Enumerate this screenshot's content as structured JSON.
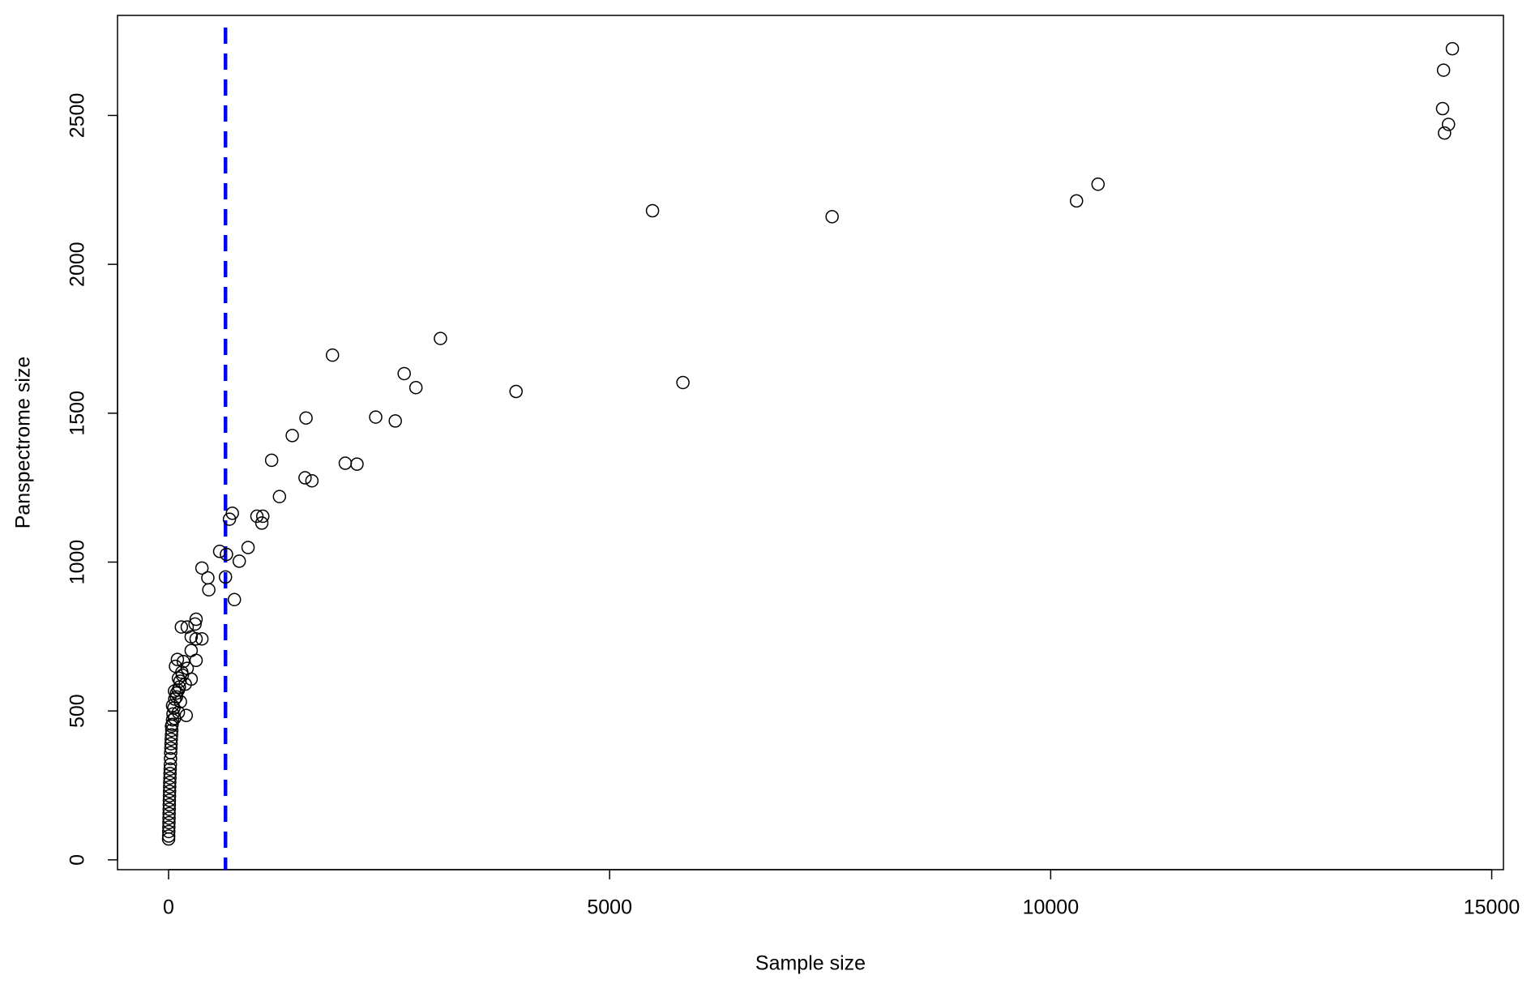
{
  "chart_data": {
    "type": "scatter",
    "xlabel": "Sample size",
    "ylabel": "Panspectrome size",
    "xlim": [
      -579,
      15133
    ],
    "ylim": [
      -33,
      2836
    ],
    "xticks": [
      0,
      5000,
      10000,
      15000
    ],
    "yticks": [
      0,
      500,
      1000,
      1500,
      2000,
      2500
    ],
    "color": "#000000",
    "vline": {
      "x": 645,
      "color": "#0000ff"
    },
    "x": [
      14554,
      14454,
      14443,
      14510,
      14465,
      10537,
      10293,
      5486,
      7522,
      3082,
      1858,
      5831,
      2671,
      2804,
      3939,
      1558,
      2348,
      2570,
      1402,
      1168,
      2003,
      2136,
      1547,
      1625,
      1257,
      723,
      690,
      1001,
      1068,
      1057,
      901,
      579,
      656,
      801,
      378,
      445,
      645,
      456,
      746,
      312,
      300,
      145,
      211,
      256,
      312,
      378,
      312,
      256,
      100,
      78,
      167,
      211,
      156,
      111,
      256,
      189,
      122,
      67,
      89,
      134,
      45,
      200,
      111,
      67,
      33,
      0,
      1,
      2,
      3,
      4,
      5,
      6,
      7,
      8,
      9,
      10,
      11,
      12,
      13,
      15,
      16,
      18,
      20,
      22,
      24,
      26,
      28,
      30,
      33,
      36,
      40,
      45,
      50,
      60,
      70,
      90,
      110,
      130,
      150
    ],
    "values": [
      2724,
      2652,
      2523,
      2470,
      2441,
      2269,
      2213,
      2180,
      2160,
      1751,
      1695,
      1603,
      1633,
      1586,
      1573,
      1484,
      1487,
      1474,
      1425,
      1342,
      1332,
      1329,
      1283,
      1273,
      1220,
      1164,
      1144,
      1154,
      1154,
      1131,
      1049,
      1036,
      1026,
      1003,
      980,
      947,
      950,
      907,
      874,
      808,
      792,
      782,
      782,
      749,
      742,
      742,
      670,
      703,
      673,
      650,
      666,
      643,
      620,
      610,
      607,
      590,
      580,
      567,
      547,
      531,
      518,
      485,
      495,
      475,
      449,
      70,
      80,
      95,
      110,
      125,
      140,
      155,
      170,
      185,
      200,
      215,
      230,
      245,
      260,
      275,
      290,
      305,
      320,
      340,
      360,
      375,
      390,
      405,
      420,
      435,
      455,
      470,
      490,
      510,
      540,
      560,
      570,
      600,
      630
    ]
  }
}
